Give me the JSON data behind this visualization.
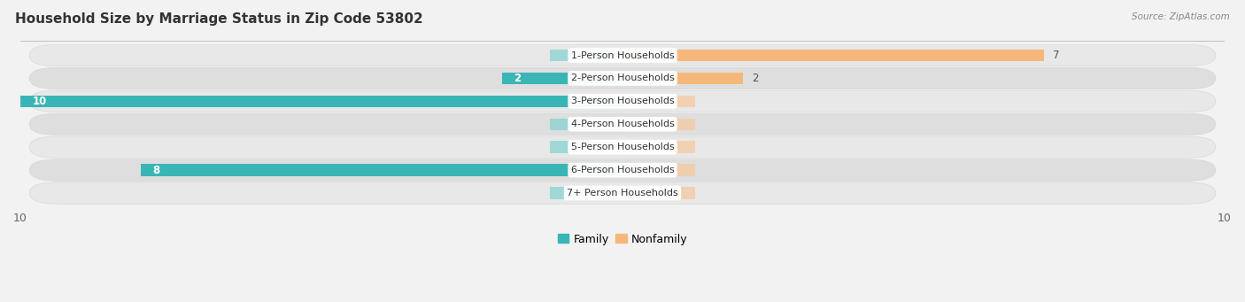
{
  "title": "Household Size by Marriage Status in Zip Code 53802",
  "source": "Source: ZipAtlas.com",
  "categories": [
    "1-Person Households",
    "2-Person Households",
    "3-Person Households",
    "4-Person Households",
    "5-Person Households",
    "6-Person Households",
    "7+ Person Households"
  ],
  "family_values": [
    0,
    2,
    10,
    0,
    0,
    8,
    0
  ],
  "nonfamily_values": [
    7,
    2,
    0,
    0,
    0,
    0,
    0
  ],
  "family_color": "#3ab5b5",
  "nonfamily_color": "#f5b87a",
  "family_color_light": "#82d0d0",
  "nonfamily_color_light": "#f5c89a",
  "xlim": [
    -10,
    10
  ],
  "bar_height": 0.52,
  "bg_color": "#f2f2f2",
  "row_bg_even": "#e8e8e8",
  "row_bg_odd": "#dedede",
  "label_bg": "#ffffff",
  "title_fontsize": 11,
  "axis_fontsize": 9,
  "label_fontsize": 8,
  "value_fontsize": 8.5,
  "source_fontsize": 7.5
}
